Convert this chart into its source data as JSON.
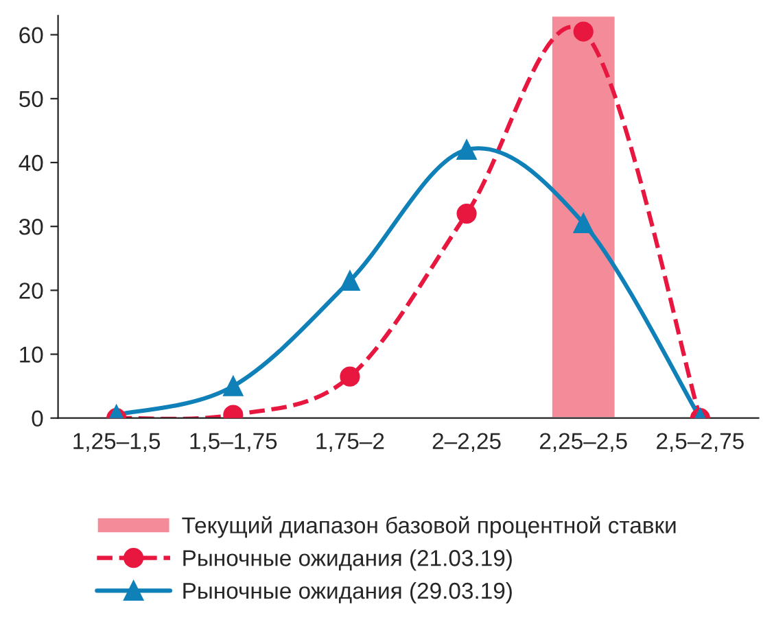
{
  "chart_data": {
    "type": "line",
    "categories": [
      "1,25–1,5",
      "1,5–1,75",
      "1,75–2",
      "2–2,25",
      "2,25–2,5",
      "2,5–2,75"
    ],
    "series": [
      {
        "name": "Текущий диапазон базовой процентной ставки",
        "type": "bar",
        "color": "#f48b98",
        "values": [
          null,
          null,
          null,
          null,
          63,
          null
        ]
      },
      {
        "name": "Рыночные ожидания (21.03.19)",
        "color": "#e8173f",
        "marker": "circle",
        "line_style": "dashed",
        "values": [
          0,
          0.5,
          6.5,
          32,
          60.5,
          0
        ]
      },
      {
        "name": "Рыночные ожидания (29.03.19)",
        "color": "#0f80b8",
        "marker": "triangle",
        "line_style": "solid",
        "values": [
          0.5,
          5,
          21.5,
          42,
          30.5,
          0
        ]
      }
    ],
    "ylim": [
      0,
      63
    ],
    "yticks": [
      0,
      10,
      20,
      30,
      40,
      50,
      60
    ],
    "grid": false,
    "legend": "bottom"
  }
}
